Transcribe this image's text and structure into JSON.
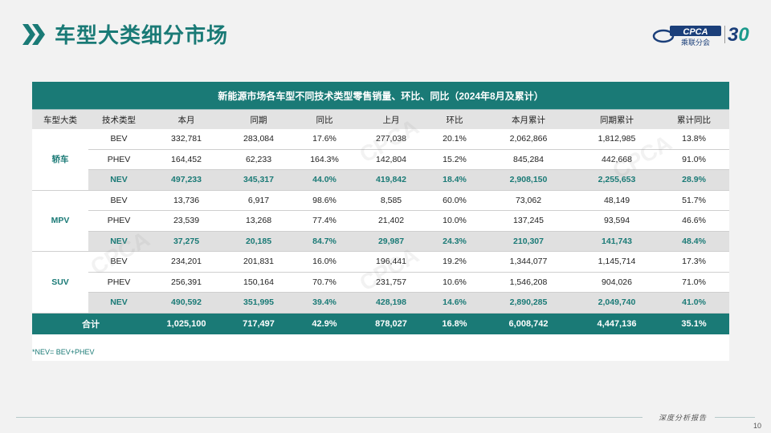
{
  "header": {
    "title": "车型大类细分市场"
  },
  "logo": {
    "brand": "CPCA",
    "brand_sub": "乘联分会",
    "anniv_a": "3",
    "anniv_b": "0"
  },
  "table": {
    "caption": "新能源市场各车型不同技术类型零售销量、环比、同比（2024年8月及累计）",
    "columns": [
      "车型大类",
      "技术类型",
      "本月",
      "同期",
      "同比",
      "上月",
      "环比",
      "本月累计",
      "同期累计",
      "累计同比"
    ],
    "groups": [
      {
        "name": "轿车",
        "rows": [
          [
            "BEV",
            "332,781",
            "283,084",
            "17.6%",
            "277,038",
            "20.1%",
            "2,062,866",
            "1,812,985",
            "13.8%"
          ],
          [
            "PHEV",
            "164,452",
            "62,233",
            "164.3%",
            "142,804",
            "15.2%",
            "845,284",
            "442,668",
            "91.0%"
          ],
          [
            "NEV",
            "497,233",
            "345,317",
            "44.0%",
            "419,842",
            "18.4%",
            "2,908,150",
            "2,255,653",
            "28.9%"
          ]
        ]
      },
      {
        "name": "MPV",
        "rows": [
          [
            "BEV",
            "13,736",
            "6,917",
            "98.6%",
            "8,585",
            "60.0%",
            "73,062",
            "48,149",
            "51.7%"
          ],
          [
            "PHEV",
            "23,539",
            "13,268",
            "77.4%",
            "21,402",
            "10.0%",
            "137,245",
            "93,594",
            "46.6%"
          ],
          [
            "NEV",
            "37,275",
            "20,185",
            "84.7%",
            "29,987",
            "24.3%",
            "210,307",
            "141,743",
            "48.4%"
          ]
        ]
      },
      {
        "name": "SUV",
        "rows": [
          [
            "BEV",
            "234,201",
            "201,831",
            "16.0%",
            "196,441",
            "19.2%",
            "1,344,077",
            "1,145,714",
            "17.3%"
          ],
          [
            "PHEV",
            "256,391",
            "150,164",
            "70.7%",
            "231,757",
            "10.6%",
            "1,546,208",
            "904,026",
            "71.0%"
          ],
          [
            "NEV",
            "490,592",
            "351,995",
            "39.4%",
            "428,198",
            "14.6%",
            "2,890,285",
            "2,049,740",
            "41.0%"
          ]
        ]
      }
    ],
    "total": [
      "合计",
      "1,025,100",
      "717,497",
      "42.9%",
      "878,027",
      "16.8%",
      "6,008,742",
      "4,447,136",
      "35.1%"
    ]
  },
  "footnote": "*NEV= BEV+PHEV",
  "footer": {
    "tagline": "深度分析报告",
    "page": "10"
  },
  "colors": {
    "accent": "#1a7a76",
    "nev_bg": "#e0e0e0"
  }
}
